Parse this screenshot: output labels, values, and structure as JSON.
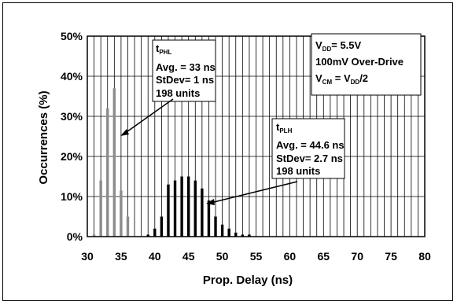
{
  "chart_data": {
    "type": "bar",
    "title": "",
    "xlabel": "Prop. Delay (ns)",
    "ylabel": "Occurrences (%)",
    "xlim": [
      30,
      80
    ],
    "ylim": [
      0,
      50
    ],
    "x_ticks": [
      "30",
      "35",
      "40",
      "45",
      "50",
      "55",
      "60",
      "65",
      "70",
      "75",
      "80"
    ],
    "y_ticks": [
      "0%",
      "10%",
      "20%",
      "30%",
      "40%",
      "50%"
    ],
    "grid": true,
    "series": [
      {
        "name": "tPHL",
        "color": "#8c8c8c",
        "x": [
          31,
          32,
          33,
          34,
          35,
          36
        ],
        "values": [
          0.5,
          14,
          32,
          37,
          11.5,
          5
        ]
      },
      {
        "name": "tPLH",
        "color": "#000000",
        "x": [
          39,
          40,
          41,
          42,
          43,
          44,
          45,
          46,
          47,
          48,
          49,
          50,
          51,
          52,
          53,
          54
        ],
        "values": [
          0.5,
          2,
          5,
          13,
          14,
          15,
          15,
          14,
          12,
          9,
          5,
          3,
          2,
          1,
          0.5,
          0.5
        ]
      }
    ],
    "annotations": {
      "phl": {
        "label_main": "t",
        "label_sub": "PHL",
        "lines": [
          "Avg. = 33 ns",
          "StDev= 1 ns",
          "198 units"
        ]
      },
      "plh": {
        "label_main": "t",
        "label_sub": "PLH",
        "lines": [
          "Avg. = 44.6 ns",
          "StDev= 2.7 ns",
          "198 units"
        ]
      },
      "conditions": {
        "vdd_main": "V",
        "vdd_sub": "DD",
        "vdd_value": "= 5.5V",
        "overdrive": "100mV Over-Drive",
        "vcm_main": "V",
        "vcm_sub": "CM",
        "vcm_eq": " = V",
        "vcm_sub2": "DD",
        "vcm_tail": "/2"
      }
    }
  }
}
